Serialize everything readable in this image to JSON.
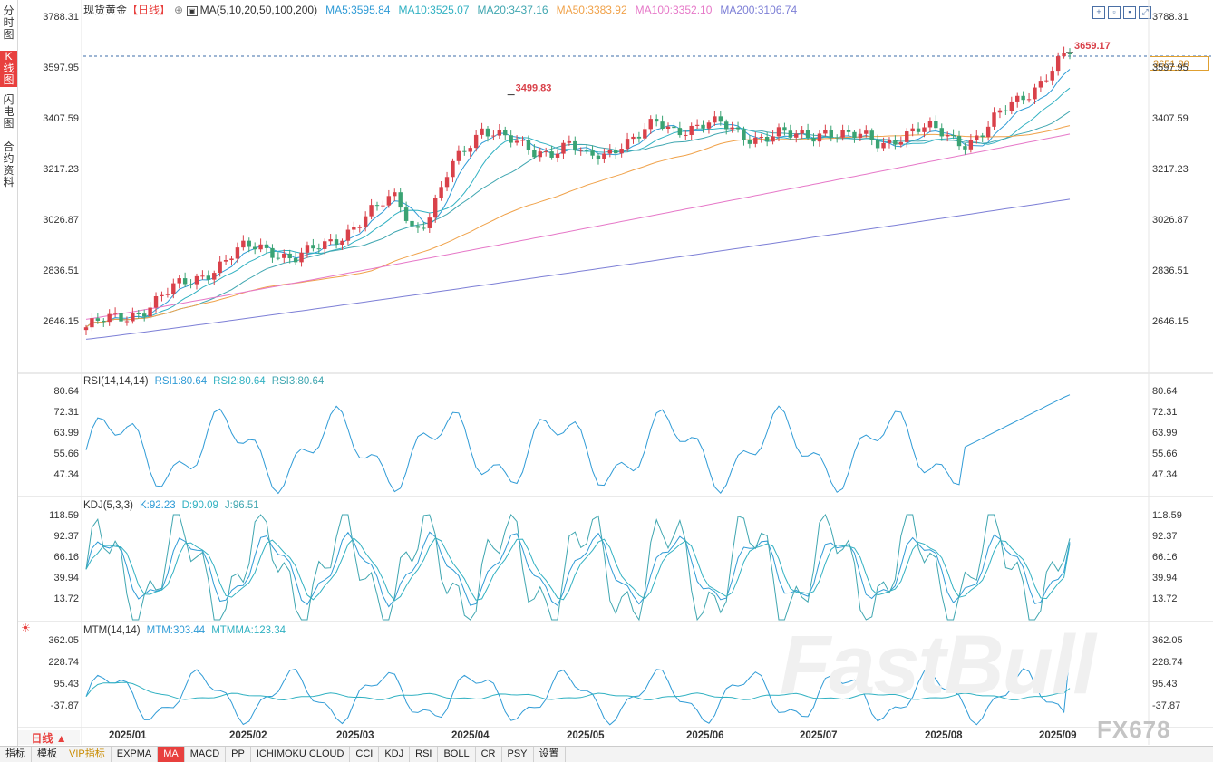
{
  "sidebar": {
    "tabs": [
      {
        "label": "分时图",
        "active": false
      },
      {
        "label": "K线图",
        "active": true
      },
      {
        "label": "闪电图",
        "active": false
      },
      {
        "label": "合约资料",
        "active": false
      }
    ]
  },
  "header": {
    "title": "现货黄金",
    "period": "【日线】",
    "ma_label": "MA(5,10,20,50,100,200)",
    "ma_values": [
      {
        "text": "MA5:3595.84",
        "color": "#2f9bd6"
      },
      {
        "text": "MA10:3525.07",
        "color": "#31b1c2"
      },
      {
        "text": "MA20:3437.16",
        "color": "#3fa6b0"
      },
      {
        "text": "MA50:3383.92",
        "color": "#f0a24a"
      },
      {
        "text": "MA100:3352.10",
        "color": "#e678c8"
      },
      {
        "text": "MA200:3106.74",
        "color": "#7d7fd6"
      }
    ]
  },
  "price_box": "3651.80",
  "main_chart": {
    "yticks": [
      "3788.31",
      "3597.95",
      "3407.59",
      "3217.23",
      "3026.87",
      "2836.51",
      "2646.15"
    ],
    "high_label": "3659.17",
    "peak_label": "3499.83"
  },
  "rsi": {
    "label": "RSI(14,14,14)",
    "values": [
      {
        "text": "RSI1:80.64",
        "color": "#2f9bd6"
      },
      {
        "text": "RSI2:80.64",
        "color": "#31b1c2"
      },
      {
        "text": "RSI3:80.64",
        "color": "#3fa6b0"
      }
    ],
    "yticks": [
      "80.64",
      "72.31",
      "63.99",
      "55.66",
      "47.34"
    ]
  },
  "kdj": {
    "label": "KDJ(5,3,3)",
    "values": [
      {
        "text": "K:92.23",
        "color": "#2f9bd6"
      },
      {
        "text": "D:90.09",
        "color": "#31b1c2"
      },
      {
        "text": "J:96.51",
        "color": "#3fa6b0"
      }
    ],
    "yticks": [
      "118.59",
      "92.37",
      "66.16",
      "39.94",
      "13.72"
    ]
  },
  "mtm": {
    "label": "MTM(14,14)",
    "values": [
      {
        "text": "MTM:303.44",
        "color": "#2f9bd6"
      },
      {
        "text": "MTMMA:123.34",
        "color": "#31b1c2"
      }
    ],
    "yticks": [
      "362.05",
      "228.74",
      "95.43",
      "-37.87"
    ]
  },
  "xaxis": [
    "2025/01",
    "2025/02",
    "2025/03",
    "2025/04",
    "2025/05",
    "2025/06",
    "2025/07",
    "2025/08",
    "2025/09"
  ],
  "daily_tab": "日线 ▲",
  "bottom_tabs": [
    {
      "label": "指标",
      "selected": false
    },
    {
      "label": "模板",
      "selected": false
    },
    {
      "label": "VIP指标",
      "selected": false,
      "vip": true
    },
    {
      "label": "EXPMA",
      "selected": false
    },
    {
      "label": "MA",
      "selected": true
    },
    {
      "label": "MACD",
      "selected": false
    },
    {
      "label": "PP",
      "selected": false
    },
    {
      "label": "ICHIMOKU CLOUD",
      "selected": false
    },
    {
      "label": "CCI",
      "selected": false
    },
    {
      "label": "KDJ",
      "selected": false
    },
    {
      "label": "RSI",
      "selected": false
    },
    {
      "label": "BOLL",
      "selected": false
    },
    {
      "label": "CR",
      "selected": false
    },
    {
      "label": "PSY",
      "selected": false
    },
    {
      "label": "设置",
      "selected": false
    }
  ],
  "watermark": "FastBull",
  "watermark2": "FX678",
  "chart_data": {
    "type": "candlestick",
    "title": "现货黄金【日线】",
    "x": [
      "2025/01",
      "2025/02",
      "2025/03",
      "2025/04",
      "2025/05",
      "2025/06",
      "2025/07",
      "2025/08",
      "2025/09"
    ],
    "ylim": [
      2570,
      3800
    ],
    "close_approx": [
      2625,
      2640,
      2660,
      2690,
      2720,
      2760,
      2800,
      2840,
      2870,
      2910,
      2930,
      2920,
      2880,
      2900,
      2940,
      2990,
      3030,
      3070,
      3120,
      3000,
      3050,
      3200,
      3300,
      3390,
      3350,
      3300,
      3280,
      3300,
      3320,
      3250,
      3270,
      3330,
      3350,
      3380,
      3360,
      3390,
      3400,
      3370,
      3340,
      3350,
      3360,
      3330,
      3340,
      3380,
      3350,
      3330,
      3310,
      3350,
      3370,
      3360,
      3340,
      3330,
      3360,
      3420,
      3480,
      3540,
      3600,
      3651.8
    ],
    "labels": {
      "period_high": 3659.17,
      "april_high": 3499.83,
      "last": 3651.8
    },
    "series": [
      {
        "name": "MA5",
        "last": 3595.84
      },
      {
        "name": "MA10",
        "last": 3525.07
      },
      {
        "name": "MA20",
        "last": 3437.16
      },
      {
        "name": "MA50",
        "last": 3383.92
      },
      {
        "name": "MA100",
        "last": 3352.1
      },
      {
        "name": "MA200",
        "last": 3106.74
      }
    ],
    "rsi_last": 80.64,
    "kdj_last": {
      "K": 92.23,
      "D": 90.09,
      "J": 96.51
    },
    "mtm_last": {
      "MTM": 303.44,
      "MTMMA": 123.34
    },
    "grid": false,
    "legend": "top-left"
  }
}
